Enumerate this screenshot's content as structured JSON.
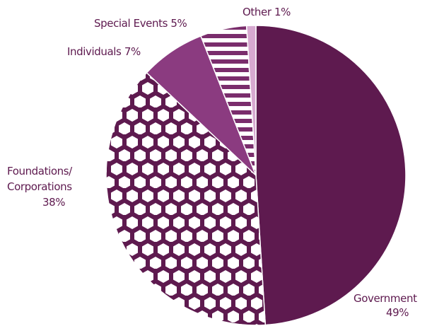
{
  "chart_data": {
    "type": "pie",
    "title": "",
    "categories": [
      "Government",
      "Foundations/ Corporations",
      "Individuals",
      "Special Events",
      "Other"
    ],
    "values": [
      49,
      38,
      7,
      5,
      1
    ],
    "labels": [
      {
        "lines": [
          "Government",
          "49%"
        ]
      },
      {
        "lines": [
          "Foundations/",
          "Corporations",
          "38%"
        ]
      },
      {
        "lines": [
          "Individuals 7%"
        ]
      },
      {
        "lines": [
          "Special Events 5%"
        ]
      },
      {
        "lines": [
          "Other 1%"
        ]
      }
    ],
    "fills": [
      "solid",
      "hexagon-pattern",
      "solid",
      "stripe-pattern",
      "solid"
    ],
    "colors": [
      "#5e1a4f",
      "#5e1a4f",
      "#8b3b80",
      "#7a2d6c",
      "#d7a9d0"
    ],
    "legend": "none"
  }
}
